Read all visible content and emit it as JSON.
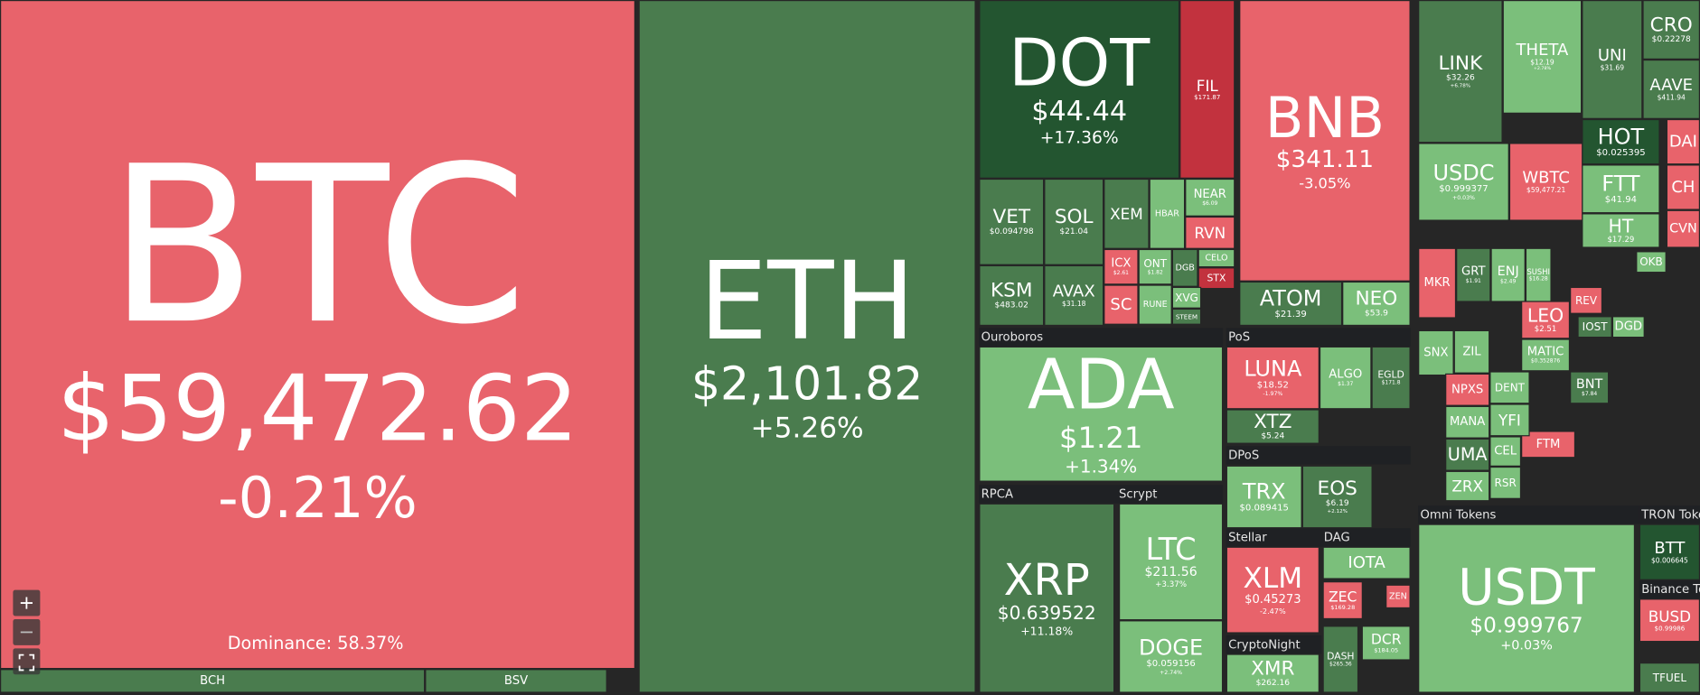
{
  "dominance": "Dominance: 58.37%",
  "groups": [
    "Ouroboros",
    "RPCA",
    "Scrypt",
    "PoS",
    "DPoS",
    "Stellar",
    "DAG",
    "CryptoNight",
    "Omni Tokens",
    "TRON Tokens",
    "Binance Tokens"
  ],
  "tiles": [
    {
      "label": "BTC",
      "price": "$59,472.62",
      "change": "-0.21%",
      "color": "#e8636b"
    },
    {
      "label": "BCH",
      "color": "#4a7c4e"
    },
    {
      "label": "BSV",
      "color": "#4a7c4e"
    },
    {
      "label": "ETH",
      "price": "$2,101.82",
      "change": "+5.26%",
      "color": "#4a7c4e"
    },
    {
      "label": "DOT",
      "price": "$44.44",
      "change": "+17.36%",
      "color": "#235530"
    },
    {
      "label": "FIL",
      "price": "$171.87",
      "color": "#c2323e"
    },
    {
      "label": "VET",
      "price": "$0.094798",
      "color": "#4a7c4e"
    },
    {
      "label": "SOL",
      "price": "$21.04",
      "color": "#4a7c4e"
    },
    {
      "label": "XEM",
      "color": "#4a7c4e"
    },
    {
      "label": "HBAR",
      "color": "#7bbf7b"
    },
    {
      "label": "NEAR",
      "price": "$6.09",
      "color": "#7bbf7b"
    },
    {
      "label": "RVN",
      "color": "#e8636b"
    },
    {
      "label": "CELO",
      "color": "#7bbf7b"
    },
    {
      "label": "STX",
      "color": "#c2323e"
    },
    {
      "label": "KSM",
      "price": "$483.02",
      "color": "#4a7c4e"
    },
    {
      "label": "AVAX",
      "price": "$31.18",
      "color": "#4a7c4e"
    },
    {
      "label": "ICX",
      "price": "$2.61",
      "color": "#e8636b"
    },
    {
      "label": "ONT",
      "price": "$1.82",
      "color": "#7bbf7b"
    },
    {
      "label": "DGB",
      "color": "#4a7c4e"
    },
    {
      "label": "SC",
      "color": "#e8636b"
    },
    {
      "label": "RUNE",
      "color": "#7bbf7b"
    },
    {
      "label": "XVG",
      "color": "#7bbf7b"
    },
    {
      "label": "STEEM",
      "color": "#4a7c4e"
    },
    {
      "label": "BNB",
      "price": "$341.11",
      "change": "-3.05%",
      "color": "#e8636b"
    },
    {
      "label": "ATOM",
      "price": "$21.39",
      "color": "#4a7c4e"
    },
    {
      "label": "NEO",
      "price": "$53.9",
      "color": "#7bbf7b"
    },
    {
      "label": "ADA",
      "price": "$1.21",
      "change": "+1.34%",
      "color": "#7bbf7b"
    },
    {
      "label": "XRP",
      "price": "$0.639522",
      "change": "+11.18%",
      "color": "#4a7c4e"
    },
    {
      "label": "LTC",
      "price": "$211.56",
      "change": "+3.37%",
      "color": "#7bbf7b"
    },
    {
      "label": "DOGE",
      "price": "$0.059156",
      "change": "+2.74%",
      "color": "#7bbf7b"
    },
    {
      "label": "LUNA",
      "price": "$18.52",
      "change": "-1.97%",
      "color": "#e8636b"
    },
    {
      "label": "ALGO",
      "price": "$1.37",
      "color": "#7bbf7b"
    },
    {
      "label": "EGLD",
      "price": "$171.8",
      "color": "#4a7c4e"
    },
    {
      "label": "XTZ",
      "price": "$5.24",
      "color": "#4a7c4e"
    },
    {
      "label": "TRX",
      "price": "$0.089415",
      "color": "#7bbf7b"
    },
    {
      "label": "EOS",
      "price": "$6.19",
      "change": "+2.12%",
      "color": "#4a7c4e"
    },
    {
      "label": "XLM",
      "price": "$0.45273",
      "change": "-2.47%",
      "color": "#e8636b"
    },
    {
      "label": "IOTA",
      "color": "#7bbf7b"
    },
    {
      "label": "ZEC",
      "price": "$169.28",
      "color": "#e8636b"
    },
    {
      "label": "ZEN",
      "color": "#e8636b"
    },
    {
      "label": "XMR",
      "price": "$262.16",
      "color": "#7bbf7b"
    },
    {
      "label": "DASH",
      "price": "$265.36",
      "color": "#4a7c4e"
    },
    {
      "label": "DCR",
      "price": "$184.05",
      "color": "#7bbf7b"
    },
    {
      "label": "LINK",
      "price": "$32.26",
      "change": "+6.78%",
      "color": "#4a7c4e"
    },
    {
      "label": "THETA",
      "price": "$12.19",
      "change": "+2.78%",
      "color": "#7bbf7b"
    },
    {
      "label": "UNI",
      "price": "$31.69",
      "color": "#4a7c4e"
    },
    {
      "label": "CRO",
      "price": "$0.22278",
      "color": "#4a7c4e"
    },
    {
      "label": "AAVE",
      "price": "$411.94",
      "color": "#4a7c4e"
    },
    {
      "label": "USDC",
      "price": "$0.999377",
      "change": "+0.03%",
      "color": "#7bbf7b"
    },
    {
      "label": "WBTC",
      "price": "$59,477.21",
      "color": "#e8636b"
    },
    {
      "label": "HOT",
      "price": "$0.025395",
      "color": "#235530"
    },
    {
      "label": "FTT",
      "price": "$41.94",
      "color": "#7bbf7b"
    },
    {
      "label": "HT",
      "price": "$17.29",
      "color": "#7bbf7b"
    },
    {
      "label": "DAI",
      "color": "#e8636b"
    },
    {
      "label": "CH",
      "color": "#e8636b"
    },
    {
      "label": "CVN",
      "color": "#e8636b"
    },
    {
      "label": "MKR",
      "color": "#e8636b"
    },
    {
      "label": "GRT",
      "price": "$1.91",
      "color": "#4a7c4e"
    },
    {
      "label": "ENJ",
      "price": "$2.49",
      "color": "#7bbf7b"
    },
    {
      "label": "SUSHI",
      "price": "$16.28",
      "color": "#7bbf7b"
    },
    {
      "label": "LEO",
      "price": "$2.51",
      "color": "#e8636b"
    },
    {
      "label": "MATIC",
      "price": "$0.352876",
      "color": "#7bbf7b"
    },
    {
      "label": "BNT",
      "price": "$7.84",
      "color": "#4a7c4e"
    },
    {
      "label": "FTM",
      "color": "#e8636b"
    },
    {
      "label": "SNX",
      "color": "#7bbf7b"
    },
    {
      "label": "ZIL",
      "color": "#7bbf7b"
    },
    {
      "label": "NPXS",
      "color": "#e8636b"
    },
    {
      "label": "MANA",
      "color": "#7bbf7b"
    },
    {
      "label": "UMA",
      "color": "#4a7c4e"
    },
    {
      "label": "ZRX",
      "color": "#7bbf7b"
    },
    {
      "label": "DENT",
      "color": "#7bbf7b"
    },
    {
      "label": "YFI",
      "color": "#7bbf7b"
    },
    {
      "label": "CEL",
      "color": "#7bbf7b"
    },
    {
      "label": "RSR",
      "color": "#7bbf7b"
    },
    {
      "label": "OKB",
      "color": "#7bbf7b"
    },
    {
      "label": "IOST",
      "color": "#4a7c4e"
    },
    {
      "label": "DGD",
      "color": "#7bbf7b"
    },
    {
      "label": "REV",
      "color": "#e8636b"
    },
    {
      "label": "USDT",
      "price": "$0.999767",
      "change": "+0.03%",
      "color": "#7bbf7b"
    },
    {
      "label": "BTT",
      "price": "$0.006645",
      "color": "#235530"
    },
    {
      "label": "BUSD",
      "price": "$0.99986",
      "color": "#e8636b"
    },
    {
      "label": "TFUEL",
      "color": "#4a7c4e"
    }
  ]
}
